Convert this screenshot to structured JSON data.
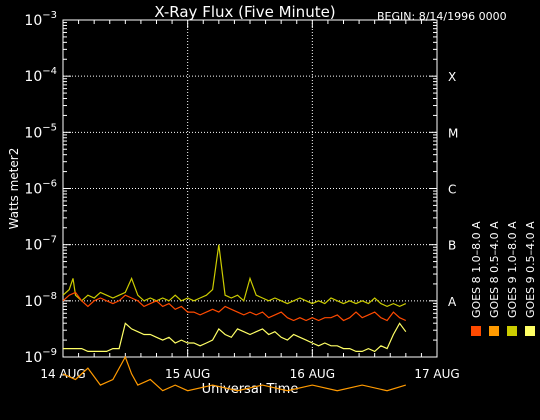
{
  "header": {
    "title": "X-Ray Flux (Five Minute)",
    "begin": "BEGIN: 8/14/1996 0000"
  },
  "chart_data": {
    "type": "line",
    "title": "X-Ray Flux (Five Minute)",
    "xlabel": "Universal Time",
    "ylabel": "Watts meter2",
    "scale_y": "log",
    "ylim_exp": [
      -9,
      -3
    ],
    "x_ticks": [
      "14 AUG",
      "15 AUG",
      "16 AUG",
      "17 AUG"
    ],
    "y_ticks": [
      {
        "base": "10",
        "exp": "−9"
      },
      {
        "base": "10",
        "exp": "−8"
      },
      {
        "base": "10",
        "exp": "−7"
      },
      {
        "base": "10",
        "exp": "−6"
      },
      {
        "base": "10",
        "exp": "−5"
      },
      {
        "base": "10",
        "exp": "−4"
      },
      {
        "base": "10",
        "exp": "−3"
      }
    ],
    "flare_classes": [
      {
        "label": "A",
        "exp": -8
      },
      {
        "label": "B",
        "exp": -7
      },
      {
        "label": "C",
        "exp": -6
      },
      {
        "label": "M",
        "exp": -5
      },
      {
        "label": "X",
        "exp": -4
      }
    ],
    "grid": true,
    "legend_position": "right, vertical",
    "series": [
      {
        "name": "GOES 8 1.0–8.0 A",
        "color": "#ff4a00",
        "x": [
          0.0,
          0.05,
          0.1,
          0.15,
          0.2,
          0.25,
          0.3,
          0.35,
          0.4,
          0.45,
          0.5,
          0.55,
          0.6,
          0.65,
          0.7,
          0.75,
          0.8,
          0.85,
          0.9,
          0.95,
          1.0,
          1.05,
          1.1,
          1.15,
          1.2,
          1.25,
          1.3,
          1.35,
          1.4,
          1.45,
          1.5,
          1.55,
          1.6,
          1.65,
          1.7,
          1.75,
          1.8,
          1.85,
          1.9,
          1.95,
          2.0,
          2.05,
          2.1,
          2.15,
          2.2,
          2.25,
          2.3,
          2.35,
          2.4,
          2.45,
          2.5,
          2.55,
          2.6,
          2.65,
          2.7,
          2.75
        ],
        "y": [
          -8.0,
          -7.9,
          -7.85,
          -8.0,
          -8.1,
          -8.0,
          -7.95,
          -8.0,
          -8.05,
          -8.0,
          -7.9,
          -7.95,
          -8.0,
          -8.1,
          -8.05,
          -8.0,
          -8.1,
          -8.05,
          -8.15,
          -8.1,
          -8.2,
          -8.2,
          -8.25,
          -8.2,
          -8.15,
          -8.2,
          -8.1,
          -8.15,
          -8.2,
          -8.25,
          -8.2,
          -8.25,
          -8.2,
          -8.3,
          -8.25,
          -8.2,
          -8.3,
          -8.35,
          -8.3,
          -8.35,
          -8.3,
          -8.35,
          -8.3,
          -8.3,
          -8.25,
          -8.35,
          -8.3,
          -8.2,
          -8.3,
          -8.25,
          -8.2,
          -8.3,
          -8.35,
          -8.2,
          -8.3,
          -8.35
        ]
      },
      {
        "name": "GOES 8 0.5–4.0 A",
        "color": "#ff9a00",
        "x": [
          0.0,
          0.1,
          0.2,
          0.3,
          0.4,
          0.5,
          0.55,
          0.6,
          0.7,
          0.8,
          0.9,
          1.0,
          1.2,
          1.4,
          1.6,
          1.8,
          2.0,
          2.2,
          2.4,
          2.6,
          2.75
        ],
        "y": [
          -9.3,
          -9.4,
          -9.2,
          -9.5,
          -9.4,
          -9.0,
          -9.3,
          -9.5,
          -9.4,
          -9.6,
          -9.5,
          -9.6,
          -9.5,
          -9.6,
          -9.5,
          -9.6,
          -9.5,
          -9.6,
          -9.5,
          -9.6,
          -9.5
        ]
      },
      {
        "name": "GOES 9 1.0–8.0 A",
        "color": "#cccc00",
        "x": [
          0.0,
          0.05,
          0.08,
          0.1,
          0.15,
          0.2,
          0.25,
          0.3,
          0.35,
          0.4,
          0.45,
          0.5,
          0.55,
          0.6,
          0.65,
          0.7,
          0.75,
          0.8,
          0.85,
          0.9,
          0.95,
          1.0,
          1.05,
          1.1,
          1.15,
          1.2,
          1.25,
          1.3,
          1.35,
          1.4,
          1.45,
          1.5,
          1.55,
          1.6,
          1.65,
          1.7,
          1.75,
          1.8,
          1.85,
          1.9,
          1.95,
          2.0,
          2.05,
          2.1,
          2.15,
          2.2,
          2.25,
          2.3,
          2.35,
          2.4,
          2.45,
          2.5,
          2.55,
          2.6,
          2.65,
          2.7,
          2.75
        ],
        "y": [
          -7.9,
          -7.8,
          -7.6,
          -7.9,
          -8.0,
          -7.9,
          -7.95,
          -7.85,
          -7.9,
          -7.95,
          -7.9,
          -7.85,
          -7.6,
          -7.9,
          -8.0,
          -7.95,
          -8.0,
          -7.95,
          -8.0,
          -7.9,
          -8.0,
          -7.95,
          -8.0,
          -7.95,
          -7.9,
          -7.8,
          -7.0,
          -7.9,
          -7.95,
          -7.9,
          -8.0,
          -7.6,
          -7.9,
          -7.95,
          -8.0,
          -7.95,
          -8.0,
          -8.05,
          -8.0,
          -7.95,
          -8.0,
          -8.05,
          -8.0,
          -8.05,
          -7.95,
          -8.0,
          -8.05,
          -8.0,
          -8.05,
          -8.0,
          -8.05,
          -7.95,
          -8.05,
          -8.1,
          -8.05,
          -8.1,
          -8.05
        ]
      },
      {
        "name": "GOES 9 0.5–4.0 A",
        "color": "#ffff66",
        "x": [
          0.0,
          0.05,
          0.1,
          0.15,
          0.2,
          0.25,
          0.3,
          0.35,
          0.4,
          0.45,
          0.5,
          0.55,
          0.6,
          0.65,
          0.7,
          0.75,
          0.8,
          0.85,
          0.9,
          0.95,
          1.0,
          1.05,
          1.1,
          1.15,
          1.2,
          1.25,
          1.3,
          1.35,
          1.4,
          1.45,
          1.5,
          1.55,
          1.6,
          1.65,
          1.7,
          1.75,
          1.8,
          1.85,
          1.9,
          1.95,
          2.0,
          2.05,
          2.1,
          2.15,
          2.2,
          2.25,
          2.3,
          2.35,
          2.4,
          2.45,
          2.5,
          2.55,
          2.6,
          2.65,
          2.7,
          2.75
        ],
        "y": [
          -8.85,
          -8.85,
          -8.85,
          -8.85,
          -8.9,
          -8.9,
          -8.9,
          -8.9,
          -8.85,
          -8.85,
          -8.4,
          -8.5,
          -8.55,
          -8.6,
          -8.6,
          -8.65,
          -8.7,
          -8.65,
          -8.75,
          -8.7,
          -8.75,
          -8.75,
          -8.8,
          -8.75,
          -8.7,
          -8.5,
          -8.6,
          -8.65,
          -8.5,
          -8.55,
          -8.6,
          -8.55,
          -8.5,
          -8.6,
          -8.55,
          -8.65,
          -8.7,
          -8.6,
          -8.65,
          -8.7,
          -8.75,
          -8.8,
          -8.75,
          -8.8,
          -8.8,
          -8.85,
          -8.85,
          -8.9,
          -8.9,
          -8.85,
          -8.9,
          -8.8,
          -8.85,
          -8.6,
          -8.4,
          -8.55
        ]
      }
    ]
  }
}
